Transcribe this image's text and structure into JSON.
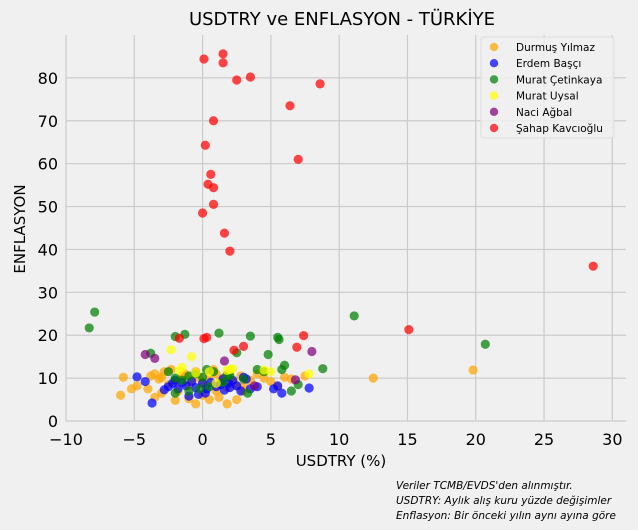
{
  "chart_data": {
    "type": "scatter",
    "title": "USDTRY ve ENFLASYON - TÜRKİYE",
    "xlabel": "USDTRY (%)",
    "ylabel": "ENFLASYON",
    "xlim": [
      -10,
      31
    ],
    "ylim": [
      0,
      90
    ],
    "xticks": [
      -10,
      -5,
      0,
      5,
      10,
      15,
      20,
      25,
      30
    ],
    "yticks": [
      0,
      10,
      20,
      30,
      40,
      50,
      60,
      70,
      80
    ],
    "grid": true,
    "legend_position": "top-right",
    "notes": [
      "Veriler TCMB/EVDS'den alınmıştır.",
      "USDTRY: Aylık alış kuru yüzde değişimler",
      "Enflasyon: Bir önceki yılın aynı ayına göre"
    ],
    "series": [
      {
        "name": "Durmuş Yılmaz",
        "color": "#ffa500",
        "points": [
          [
            -5.8,
            10.2
          ],
          [
            -6.0,
            6.0
          ],
          [
            -5.2,
            7.5
          ],
          [
            -4.8,
            8.2
          ],
          [
            -3.8,
            10.5
          ],
          [
            -3.5,
            11.0
          ],
          [
            -3.2,
            9.8
          ],
          [
            -3.0,
            10.2
          ],
          [
            -2.8,
            11.5
          ],
          [
            -2.5,
            8.5
          ],
          [
            -2.3,
            12.0
          ],
          [
            -2.0,
            9.0
          ],
          [
            -1.8,
            7.0
          ],
          [
            -1.5,
            10.5
          ],
          [
            -1.3,
            11.0
          ],
          [
            -1.0,
            8.2
          ],
          [
            -0.8,
            9.5
          ],
          [
            -0.5,
            11.5
          ],
          [
            -0.3,
            10.2
          ],
          [
            0,
            9.0
          ],
          [
            0.2,
            8.5
          ],
          [
            0.5,
            10.5
          ],
          [
            0.8,
            12.0
          ],
          [
            1.0,
            11.0
          ],
          [
            1.3,
            9.2
          ],
          [
            1.5,
            10.0
          ],
          [
            1.8,
            7.8
          ],
          [
            2.0,
            11.5
          ],
          [
            2.3,
            9.0
          ],
          [
            2.5,
            8.2
          ],
          [
            2.8,
            10.5
          ],
          [
            3.0,
            7.0
          ],
          [
            3.5,
            9.5
          ],
          [
            4.0,
            11.0
          ],
          [
            4.5,
            10.0
          ],
          [
            5.0,
            9.2
          ],
          [
            5.5,
            8.0
          ],
          [
            6.0,
            10.2
          ],
          [
            6.5,
            9.8
          ],
          [
            7.5,
            10.5
          ],
          [
            12.5,
            10.0
          ],
          [
            19.8,
            11.9
          ],
          [
            -3.5,
            5.5
          ],
          [
            -2.0,
            4.8
          ],
          [
            -1.0,
            5.2
          ],
          [
            -0.5,
            4.0
          ],
          [
            0.5,
            5.0
          ],
          [
            1.2,
            5.5
          ],
          [
            1.8,
            4.0
          ],
          [
            2.5,
            5.0
          ],
          [
            -4.0,
            7.5
          ],
          [
            -3.0,
            6.5
          ],
          [
            0.0,
            6.0
          ],
          [
            1.0,
            7.0
          ],
          [
            3.0,
            8.0
          ]
        ]
      },
      {
        "name": "Erdem Başçı",
        "color": "#0000ff",
        "points": [
          [
            -4.8,
            10.3
          ],
          [
            -4.2,
            9.2
          ],
          [
            -3.7,
            4.2
          ],
          [
            -2.8,
            7.3
          ],
          [
            -2.5,
            8.0
          ],
          [
            -2.2,
            8.8
          ],
          [
            -1.8,
            7.5
          ],
          [
            -1.5,
            9.0
          ],
          [
            -1.2,
            8.2
          ],
          [
            -0.8,
            9.2
          ],
          [
            -0.5,
            7.8
          ],
          [
            -0.3,
            6.2
          ],
          [
            0,
            8.8
          ],
          [
            0.3,
            7.5
          ],
          [
            0.6,
            9.0
          ],
          [
            1.0,
            8.0
          ],
          [
            1.3,
            8.5
          ],
          [
            1.6,
            7.2
          ],
          [
            1.9,
            8.8
          ],
          [
            2.2,
            9.5
          ],
          [
            2.5,
            8.2
          ],
          [
            2.8,
            7.0
          ],
          [
            3.2,
            9.8
          ],
          [
            3.5,
            7.5
          ],
          [
            4.0,
            8.0
          ],
          [
            5.2,
            7.5
          ],
          [
            5.5,
            8.2
          ],
          [
            5.8,
            6.5
          ],
          [
            7.8,
            7.7
          ],
          [
            -1.0,
            5.8
          ],
          [
            0.2,
            6.5
          ],
          [
            1.5,
            9.8
          ],
          [
            2.0,
            7.8
          ],
          [
            -2.0,
            9.5
          ],
          [
            3.0,
            10.2
          ]
        ]
      },
      {
        "name": "Murat Çetinkaya",
        "color": "#008000",
        "points": [
          [
            -8.3,
            21.7
          ],
          [
            -7.9,
            25.4
          ],
          [
            -3.8,
            15.8
          ],
          [
            -2.0,
            19.7
          ],
          [
            -1.3,
            20.2
          ],
          [
            -2.5,
            11.5
          ],
          [
            -2.0,
            10.0
          ],
          [
            -1.5,
            9.5
          ],
          [
            -1.0,
            10.5
          ],
          [
            -0.5,
            11.0
          ],
          [
            0,
            10.2
          ],
          [
            0.3,
            12.0
          ],
          [
            0.8,
            11.5
          ],
          [
            1.2,
            20.5
          ],
          [
            1.5,
            9.0
          ],
          [
            2.0,
            10.5
          ],
          [
            2.5,
            15.9
          ],
          [
            3.0,
            9.8
          ],
          [
            3.5,
            19.8
          ],
          [
            4.0,
            12.0
          ],
          [
            4.5,
            11.5
          ],
          [
            4.8,
            15.5
          ],
          [
            5.5,
            19.5
          ],
          [
            5.6,
            19.0
          ],
          [
            5.8,
            12.0
          ],
          [
            6.0,
            13.0
          ],
          [
            6.5,
            7.0
          ],
          [
            7.0,
            8.5
          ],
          [
            8.8,
            12.2
          ],
          [
            11.1,
            24.5
          ],
          [
            20.7,
            17.9
          ],
          [
            -2.0,
            6.5
          ],
          [
            -1.0,
            7.0
          ],
          [
            0.5,
            8.0
          ],
          [
            3.3,
            6.5
          ],
          [
            -0.2,
            7.5
          ],
          [
            1.8,
            10.8
          ]
        ]
      },
      {
        "name": "Murat Uysal",
        "color": "#ffff00",
        "points": [
          [
            -2.3,
            16.6
          ],
          [
            -1.7,
            11.8
          ],
          [
            -0.8,
            15.0
          ],
          [
            -0.5,
            11.2
          ],
          [
            0.5,
            11.5
          ],
          [
            1.0,
            8.8
          ],
          [
            1.8,
            11.8
          ],
          [
            2.0,
            12.0
          ],
          [
            2.2,
            12.2
          ],
          [
            4.5,
            11.9
          ],
          [
            5.0,
            11.5
          ],
          [
            -1.5,
            12.5
          ],
          [
            7.8,
            11.0
          ]
        ]
      },
      {
        "name": "Naci Ağbal",
        "color": "#800080",
        "points": [
          [
            -4.2,
            15.5
          ],
          [
            -3.5,
            14.6
          ],
          [
            1.6,
            14.0
          ],
          [
            3.8,
            8.2
          ],
          [
            6.8,
            9.6
          ],
          [
            8.0,
            16.2
          ]
        ]
      },
      {
        "name": "Şahap Kavcıoğlu",
        "color": "#ff0000",
        "points": [
          [
            0.1,
            84.4
          ],
          [
            1.5,
            85.6
          ],
          [
            1.5,
            83.5
          ],
          [
            2.5,
            79.5
          ],
          [
            3.5,
            80.2
          ],
          [
            8.6,
            78.6
          ],
          [
            6.4,
            73.5
          ],
          [
            0.8,
            70.0
          ],
          [
            0.2,
            64.3
          ],
          [
            7.0,
            61.0
          ],
          [
            0.6,
            57.5
          ],
          [
            0.4,
            55.2
          ],
          [
            0.8,
            54.4
          ],
          [
            0.8,
            50.5
          ],
          [
            0.0,
            48.5
          ],
          [
            1.6,
            43.8
          ],
          [
            2.0,
            39.6
          ],
          [
            28.6,
            36.1
          ],
          [
            15.1,
            21.3
          ],
          [
            7.4,
            19.9
          ],
          [
            6.9,
            17.2
          ],
          [
            3.0,
            17.4
          ],
          [
            2.3,
            16.5
          ],
          [
            0.3,
            19.5
          ],
          [
            0.1,
            19.2
          ],
          [
            -1.7,
            19.3
          ]
        ]
      }
    ]
  }
}
